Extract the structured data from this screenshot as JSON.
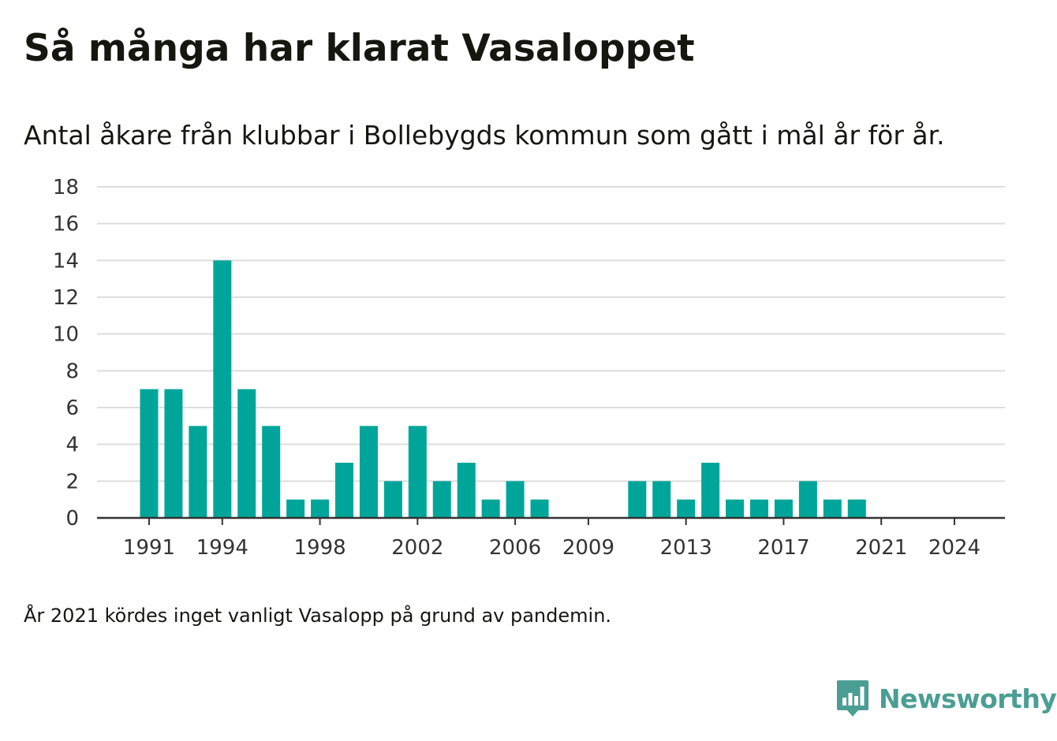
{
  "title": "Så många har klarat Vasaloppet",
  "subtitle": "Antal åkare från klubbar i Bollebygds kommun som gått i mål år för år.",
  "note": "År 2021 kördes inget vanligt Vasalopp på grund av pandemin.",
  "brand": {
    "name": "Newsworthy",
    "icon": "newsworthy-logo-icon",
    "color": "#4a9e94"
  },
  "colors": {
    "bar": "#00a59a",
    "grid": "#dddddd",
    "axis": "#333333"
  },
  "chart_data": {
    "type": "bar",
    "title": "Så många har klarat Vasaloppet",
    "subtitle": "Antal åkare från klubbar i Bollebygds kommun som gått i mål år för år.",
    "xlabel": "",
    "ylabel": "",
    "ylim": [
      0,
      18
    ],
    "yticks": [
      0,
      2,
      4,
      6,
      8,
      10,
      12,
      14,
      16,
      18
    ],
    "xticks": [
      1991,
      1994,
      1998,
      2002,
      2006,
      2009,
      2013,
      2017,
      2021,
      2024
    ],
    "grid": true,
    "legend": "none",
    "x": [
      1991,
      1992,
      1993,
      1994,
      1995,
      1996,
      1997,
      1998,
      1999,
      2000,
      2001,
      2002,
      2003,
      2004,
      2005,
      2006,
      2007,
      2008,
      2009,
      2010,
      2011,
      2012,
      2013,
      2014,
      2015,
      2016,
      2017,
      2018,
      2019,
      2020,
      2021,
      2022,
      2023,
      2024
    ],
    "values": [
      7,
      7,
      5,
      14,
      7,
      5,
      1,
      1,
      3,
      5,
      2,
      5,
      2,
      3,
      1,
      2,
      1,
      0,
      0,
      0,
      2,
      2,
      1,
      3,
      1,
      1,
      1,
      2,
      1,
      1,
      0,
      0,
      0,
      0
    ]
  }
}
